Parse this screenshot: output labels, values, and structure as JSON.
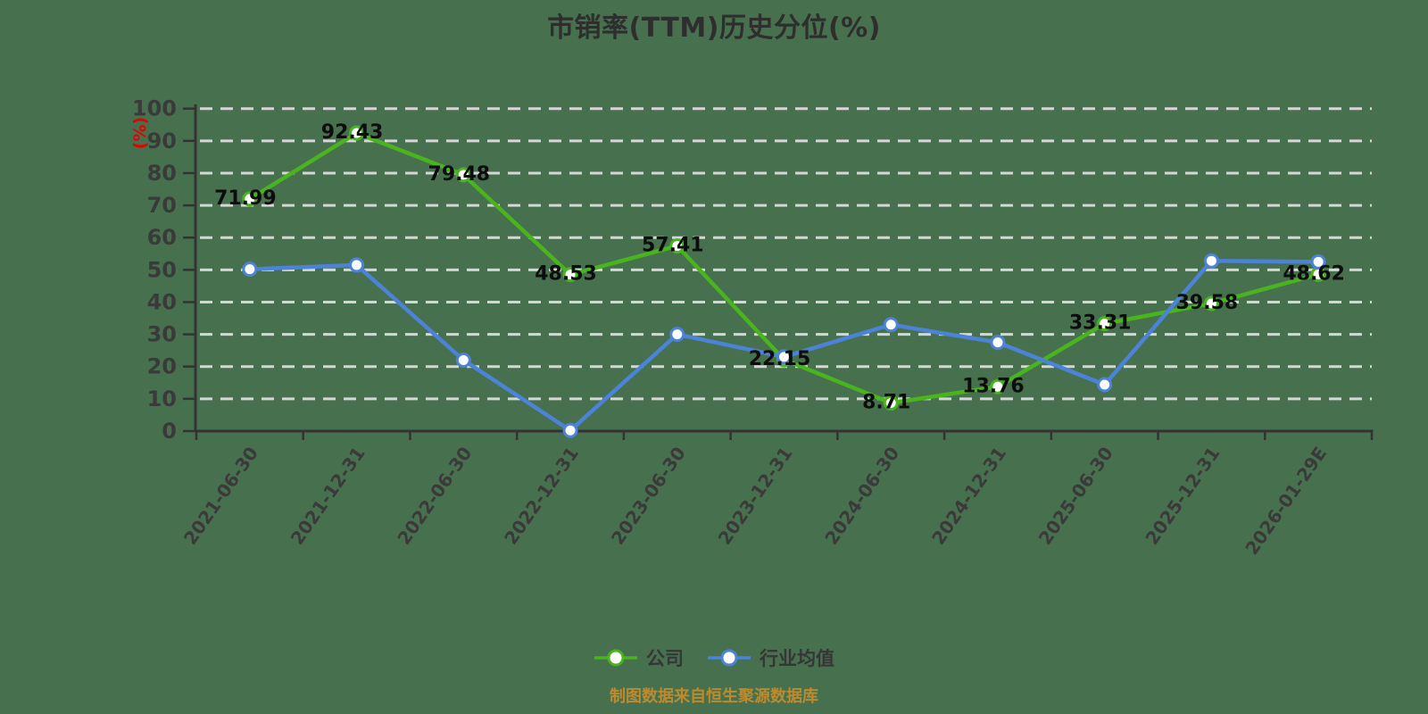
{
  "title": "市销率(TTM)历史分位(%)",
  "y_axis_unit": "(%)",
  "footer": "制图数据来自恒生聚源数据库",
  "colors": {
    "background": "#47714e",
    "company_line": "#49b41e",
    "industry_line": "#4c83d8",
    "gridline": "#d6d6d6",
    "axis": "#333333",
    "tick_label": "#3a3a3a",
    "data_label": "#0d0d0d",
    "title_text": "#2e2e2e",
    "unit_label_red": "#e60000",
    "footer_orange": "#bd8a2e"
  },
  "legend": {
    "items": [
      {
        "label": "公司",
        "color": "#49b41e"
      },
      {
        "label": "行业均值",
        "color": "#4c83d8"
      }
    ]
  },
  "chart_data": {
    "type": "line",
    "title": "市销率(TTM)历史分位(%)",
    "xlabel": "",
    "ylabel": "(%)",
    "ylim": [
      0,
      100
    ],
    "y_tick_step": 10,
    "grid": "horizontal dashed white lines",
    "legend_position": "bottom",
    "x_label_rotation_deg": 55,
    "categories": [
      "2021-06-30",
      "2021-12-31",
      "2022-06-30",
      "2022-12-31",
      "2023-06-30",
      "2023-12-31",
      "2024-06-30",
      "2024-12-31",
      "2025-06-30",
      "2025-12-31",
      "2026-01-29E"
    ],
    "series": [
      {
        "name": "公司",
        "color": "#49b41e",
        "show_point_labels": true,
        "values": [
          71.99,
          92.43,
          79.48,
          48.53,
          57.41,
          22.15,
          8.71,
          13.76,
          33.31,
          39.58,
          48.62
        ]
      },
      {
        "name": "行业均值",
        "color": "#4c83d8",
        "show_point_labels": false,
        "values_estimated_from_pixels": true,
        "values": [
          50.2,
          51.5,
          22.0,
          0.2,
          30.0,
          23.0,
          33.0,
          27.5,
          14.4,
          52.8,
          52.5
        ]
      }
    ]
  }
}
